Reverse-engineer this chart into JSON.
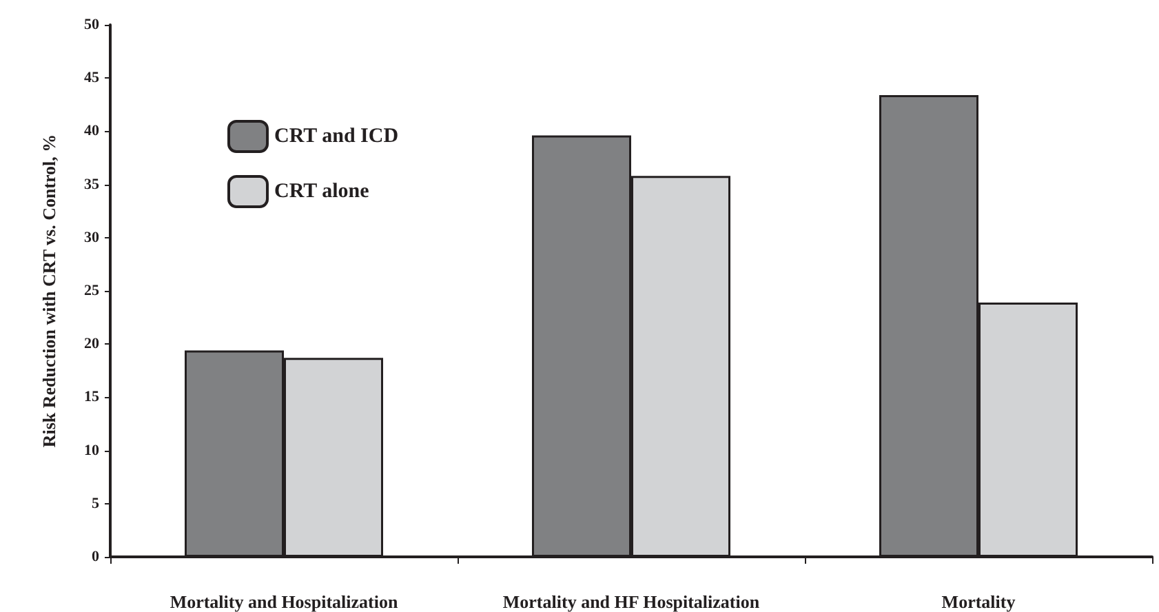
{
  "chart_data": {
    "type": "bar",
    "ylabel": "Risk Reduction with CRT vs. Control, %",
    "categories": [
      "Mortality and Hospitalization",
      "Mortality and HF Hospitalization",
      "Mortality"
    ],
    "series": [
      {
        "name": "CRT and ICD",
        "color": "#808183",
        "values": [
          19.4,
          39.6,
          43.4
        ]
      },
      {
        "name": "CRT alone",
        "color": "#d2d3d5",
        "values": [
          18.7,
          35.8,
          23.9
        ]
      }
    ],
    "ylim": [
      0,
      50
    ],
    "yticks": [
      0,
      5,
      10,
      15,
      20,
      25,
      30,
      35,
      40,
      45,
      50
    ],
    "grid": false,
    "legend": "top left"
  }
}
